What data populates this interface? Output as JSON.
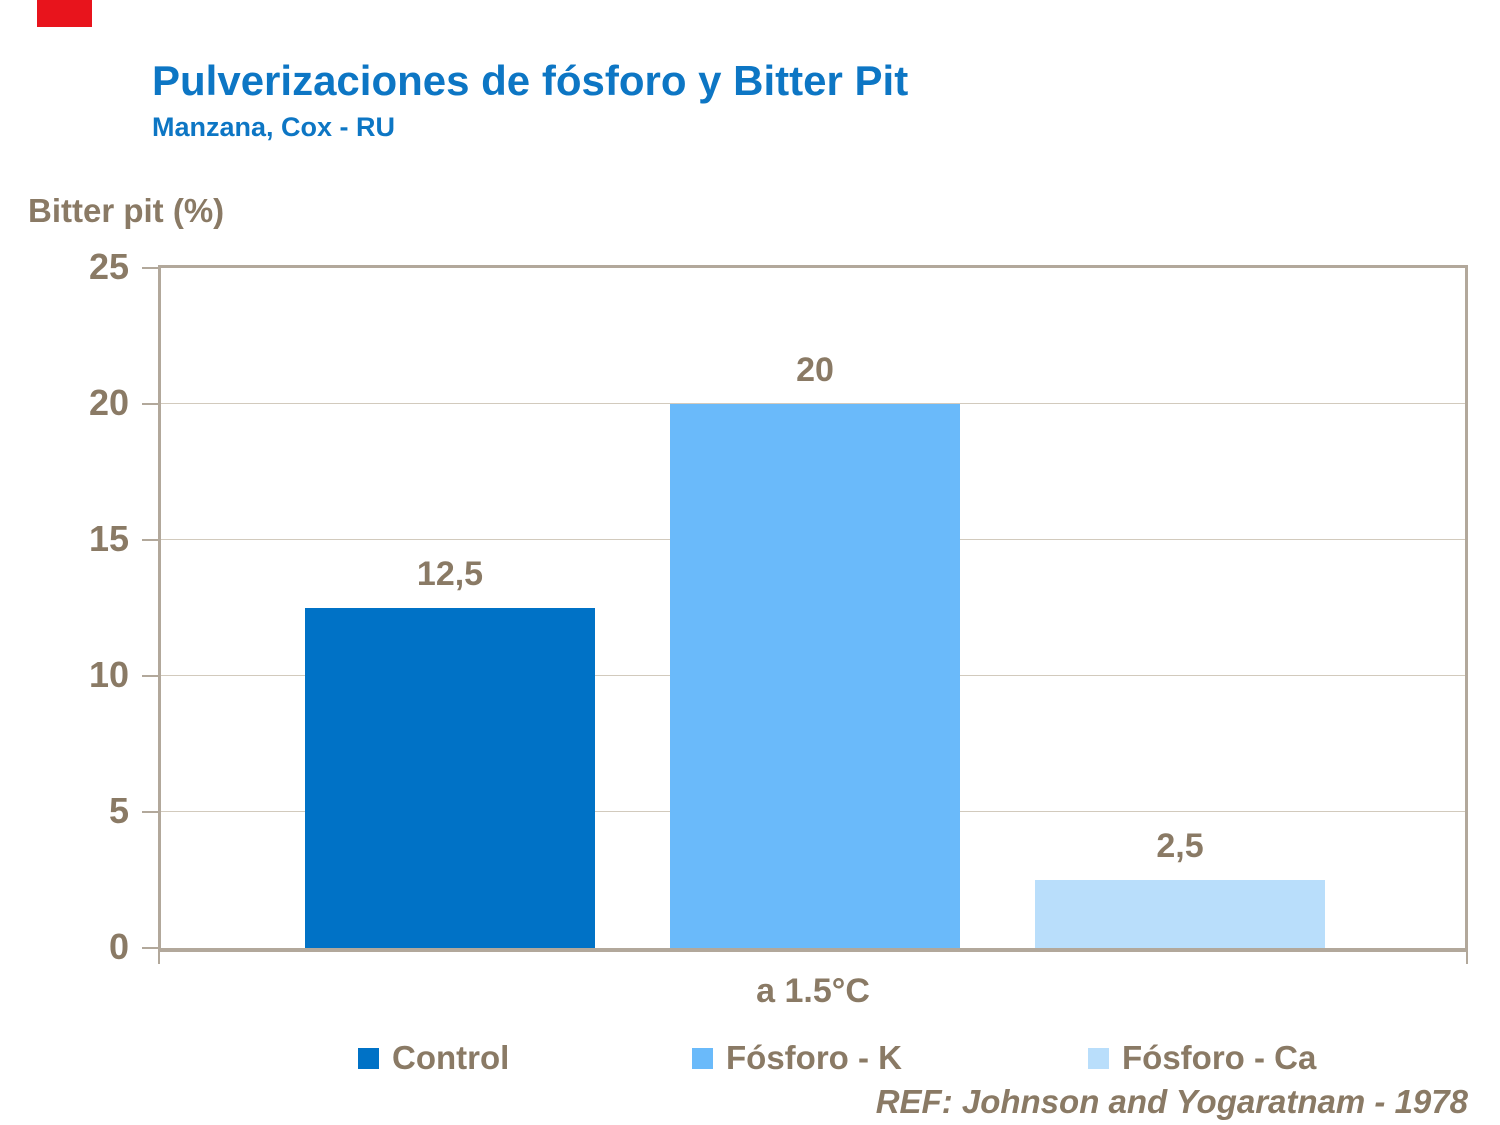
{
  "page": {
    "accent_rect_color": "#e8141c"
  },
  "colors": {
    "title_blue": "#0d76c4",
    "text_brown": "#8a7a65",
    "axis_line": "#b2a89b",
    "gridline": "#d2cabd",
    "background": "#ffffff"
  },
  "chart_data": {
    "type": "bar",
    "title": "Pulverizaciones de fósforo y Bitter Pit",
    "subtitle": "Manzana, Cox - RU",
    "ylabel": "Bitter pit (%)",
    "xlabel": "",
    "categories": [
      "a 1.5°C"
    ],
    "series": [
      {
        "name": "Control",
        "values": [
          12.5
        ],
        "data_label": "12,5",
        "color": "#0072c6"
      },
      {
        "name": "Fósforo - K",
        "values": [
          20
        ],
        "data_label": "20",
        "color": "#6abafa"
      },
      {
        "name": "Fósforo - Ca",
        "values": [
          2.5
        ],
        "data_label": "2,5",
        "color": "#b9defb"
      }
    ],
    "ylim": [
      0,
      25
    ],
    "yticks": [
      0,
      5,
      10,
      15,
      20,
      25
    ],
    "grid": true,
    "legend_position": "bottom",
    "reference": "REF: Johnson and Yogaratnam - 1978"
  }
}
